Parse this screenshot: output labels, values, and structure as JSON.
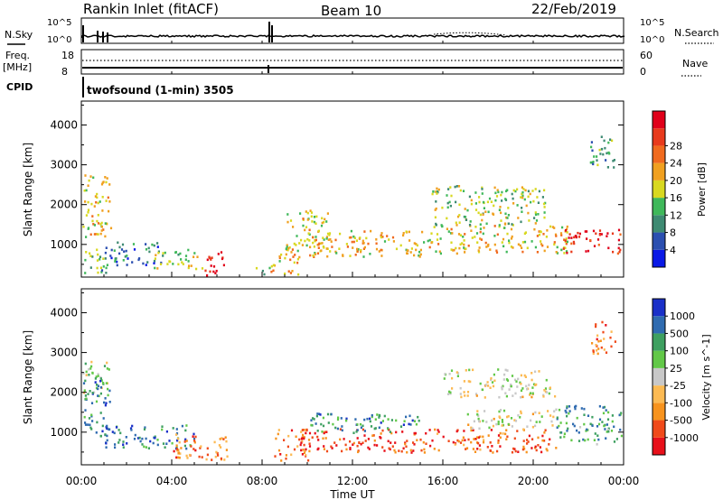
{
  "chart_data": {
    "type": "heatmap",
    "header": {
      "site": "Rankin Inlet (fitACF)",
      "beam": "Beam 10",
      "date": "22/Feb/2019"
    },
    "status_panels": {
      "nsky_label": "N.Sky",
      "nsky_ticks": [
        "10^5",
        "10^0"
      ],
      "nsearch_label": "N.Search",
      "nsearch_ticks": [
        "10^5",
        "10^0"
      ],
      "freq_label": "Freq.",
      "freq_unit": "[MHz]",
      "freq_ticks": [
        "18",
        "8"
      ],
      "nave_label": "Nave",
      "nave_ticks": [
        "60",
        "0"
      ],
      "cpid_label": "CPID",
      "cpid_text": "twofsound (1-min) 3505"
    },
    "x_axis": {
      "label": "Time UT",
      "ticks": [
        "00:00",
        "04:00",
        "08:00",
        "12:00",
        "16:00",
        "20:00",
        "00:00"
      ],
      "range_hours": [
        0,
        24
      ]
    },
    "y_axis": {
      "label": "Slant Range [km]",
      "ticks": [
        1000,
        2000,
        3000,
        4000
      ],
      "range": [
        180,
        4600
      ]
    },
    "panels": [
      {
        "quantity": "Power",
        "scale_label": "Power [dB]",
        "scale_ticks": [
          "4",
          "8",
          "12",
          "16",
          "20",
          "24",
          "28"
        ],
        "colors": [
          "#0a19e6",
          "#2b4fb0",
          "#3e8a72",
          "#3fb85a",
          "#d8d820",
          "#f0a020",
          "#f06a1e",
          "#e83a1c",
          "#e0001a"
        ],
        "regions": [
          {
            "t": [
              0.0,
              1.3
            ],
            "r": [
              1200,
              2800
            ],
            "level": 0.55
          },
          {
            "t": [
              0.0,
              1.1
            ],
            "r": [
              300,
              1000
            ],
            "level": 0.35
          },
          {
            "t": [
              1.0,
              3.5
            ],
            "r": [
              500,
              1100
            ],
            "level": 0.25
          },
          {
            "t": [
              3.2,
              5.4
            ],
            "r": [
              400,
              900
            ],
            "level": 0.45
          },
          {
            "t": [
              5.4,
              6.3
            ],
            "r": [
              250,
              900
            ],
            "level": 0.95
          },
          {
            "t": [
              7.7,
              8.4
            ],
            "r": [
              200,
              500
            ],
            "level": 0.4
          },
          {
            "t": [
              8.3,
              9.7
            ],
            "r": [
              250,
              900
            ],
            "level": 0.6
          },
          {
            "t": [
              9.0,
              11.0
            ],
            "r": [
              800,
              1900
            ],
            "level": 0.5
          },
          {
            "t": [
              10.0,
              15.0
            ],
            "r": [
              700,
              1400
            ],
            "level": 0.6
          },
          {
            "t": [
              15.0,
              21.5
            ],
            "r": [
              800,
              1500
            ],
            "level": 0.55
          },
          {
            "t": [
              15.5,
              20.5
            ],
            "r": [
              1500,
              2500
            ],
            "level": 0.45
          },
          {
            "t": [
              21.3,
              24.0
            ],
            "r": [
              800,
              1400
            ],
            "level": 0.92
          },
          {
            "t": [
              22.5,
              23.6
            ],
            "r": [
              2900,
              3800
            ],
            "level": 0.3
          }
        ]
      },
      {
        "quantity": "Velocity",
        "scale_label": "Velocity [m s^-1]",
        "scale_ticks": [
          "-1000",
          "-500",
          "-100",
          "-25",
          "25",
          "100",
          "500",
          "1000"
        ],
        "colors": [
          "#e8101a",
          "#f04a1a",
          "#f7931e",
          "#fcba53",
          "#c8c8c8",
          "#62c848",
          "#3ea060",
          "#2f6bb0",
          "#1a30c8"
        ],
        "regions": [
          {
            "t": [
              0.0,
              1.2
            ],
            "r": [
              2000,
              2800
            ],
            "level": 0.55
          },
          {
            "t": [
              0.0,
              1.3
            ],
            "r": [
              900,
              2400
            ],
            "level": 0.75
          },
          {
            "t": [
              1.0,
              5.0
            ],
            "r": [
              600,
              1200
            ],
            "level": 0.8
          },
          {
            "t": [
              4.0,
              6.5
            ],
            "r": [
              300,
              1000
            ],
            "level": 0.25
          },
          {
            "t": [
              8.5,
              10.0
            ],
            "r": [
              300,
              1100
            ],
            "level": 0.25
          },
          {
            "t": [
              9.5,
              15.5
            ],
            "r": [
              500,
              1100
            ],
            "level": 0.15
          },
          {
            "t": [
              10.0,
              15.0
            ],
            "r": [
              1000,
              1500
            ],
            "level": 0.75
          },
          {
            "t": [
              15.5,
              21.0
            ],
            "r": [
              500,
              1100
            ],
            "level": 0.2
          },
          {
            "t": [
              16.0,
              21.0
            ],
            "r": [
              1900,
              2600
            ],
            "level": 0.48
          },
          {
            "t": [
              17.0,
              21.0
            ],
            "r": [
              1100,
              1600
            ],
            "level": 0.48
          },
          {
            "t": [
              21.0,
              24.0
            ],
            "r": [
              700,
              1700
            ],
            "level": 0.72
          },
          {
            "t": [
              22.5,
              23.6
            ],
            "r": [
              3000,
              3800
            ],
            "level": 0.25
          }
        ]
      }
    ]
  }
}
